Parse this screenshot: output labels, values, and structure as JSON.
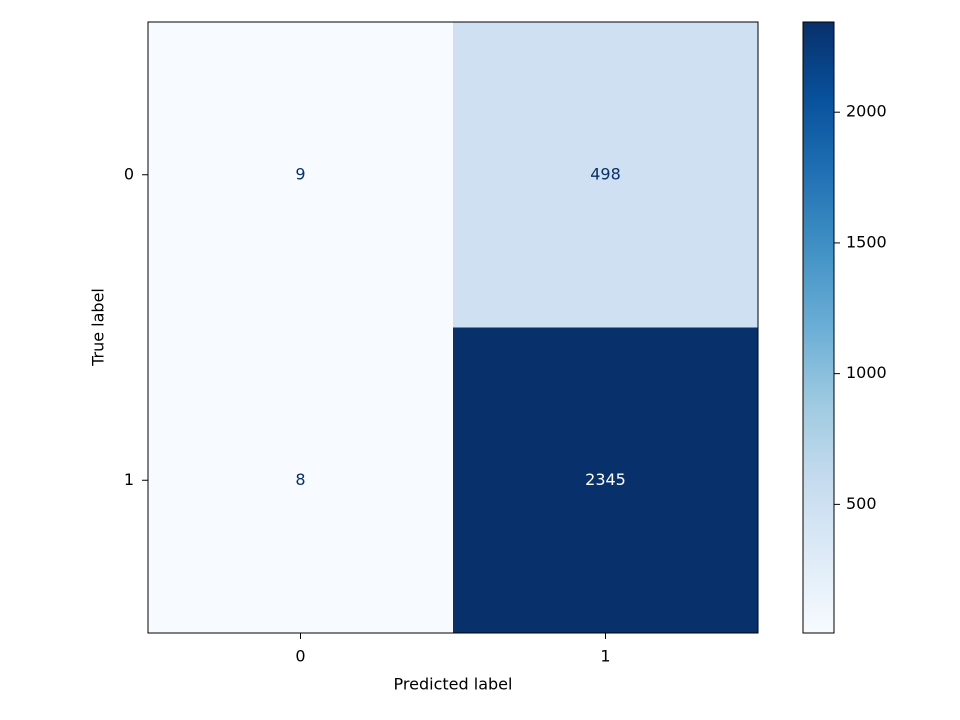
{
  "chart_data": {
    "type": "heatmap",
    "x_categories": [
      "0",
      "1"
    ],
    "y_categories": [
      "0",
      "1"
    ],
    "values": [
      [
        9,
        498
      ],
      [
        8,
        2345
      ]
    ],
    "xlabel": "Predicted label",
    "ylabel": "True label",
    "colormap": "Blues",
    "zlim": [
      8,
      2345
    ],
    "zticks": [
      500,
      1000,
      1500,
      2000
    ]
  }
}
